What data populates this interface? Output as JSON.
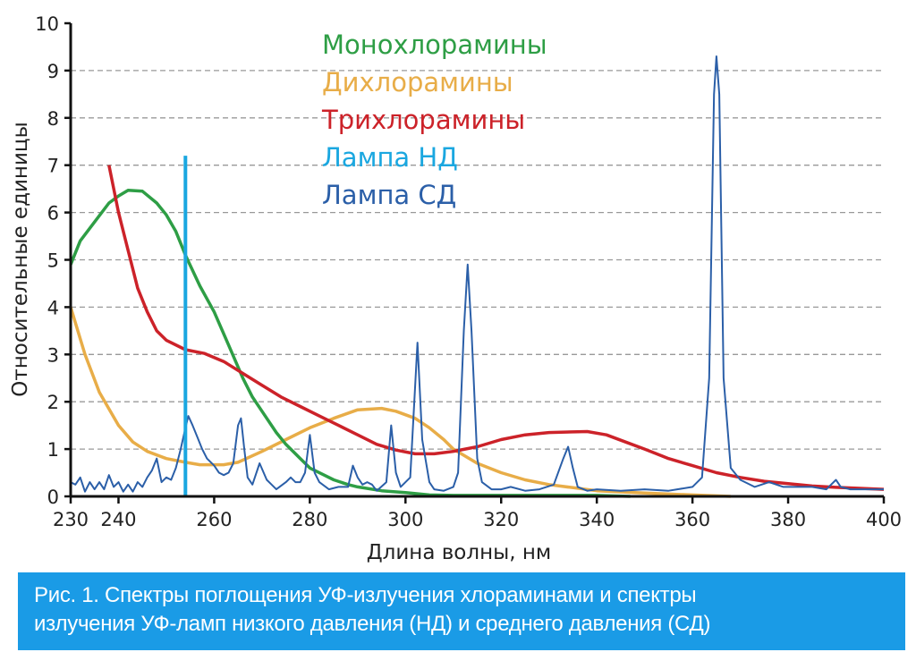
{
  "chart_data": {
    "type": "line",
    "xlabel": "Длина волны, нм",
    "ylabel": "Относительные единицы",
    "xlim": [
      230,
      400
    ],
    "ylim": [
      0,
      10
    ],
    "xticks": [
      230,
      240,
      260,
      280,
      300,
      320,
      340,
      360,
      380,
      400
    ],
    "yticks": [
      0,
      1,
      2,
      3,
      4,
      5,
      6,
      7,
      8,
      9,
      10
    ],
    "grid": "horizontal dashed",
    "legend_placement": "top-center",
    "series": [
      {
        "name": "Монохлорамины",
        "color": "#2e9e45",
        "points": [
          [
            230,
            4.9
          ],
          [
            232,
            5.4
          ],
          [
            235,
            5.8
          ],
          [
            238,
            6.2
          ],
          [
            240,
            6.35
          ],
          [
            242,
            6.47
          ],
          [
            245,
            6.45
          ],
          [
            248,
            6.2
          ],
          [
            250,
            5.95
          ],
          [
            252,
            5.6
          ],
          [
            254,
            5.1
          ],
          [
            257,
            4.45
          ],
          [
            260,
            3.9
          ],
          [
            263,
            3.2
          ],
          [
            266,
            2.5
          ],
          [
            268,
            2.1
          ],
          [
            270,
            1.8
          ],
          [
            273,
            1.35
          ],
          [
            275,
            1.1
          ],
          [
            278,
            0.8
          ],
          [
            280,
            0.6
          ],
          [
            283,
            0.45
          ],
          [
            285,
            0.35
          ],
          [
            288,
            0.25
          ],
          [
            290,
            0.2
          ],
          [
            295,
            0.12
          ],
          [
            300,
            0.08
          ],
          [
            305,
            0.03
          ],
          [
            310,
            0.02
          ],
          [
            340,
            0.02
          ],
          [
            347,
            0
          ]
        ]
      },
      {
        "name": "Дихлорамины",
        "color": "#e8ad48",
        "points": [
          [
            230,
            4.0
          ],
          [
            233,
            3.0
          ],
          [
            236,
            2.2
          ],
          [
            240,
            1.5
          ],
          [
            243,
            1.15
          ],
          [
            246,
            0.95
          ],
          [
            250,
            0.8
          ],
          [
            254,
            0.72
          ],
          [
            257,
            0.67
          ],
          [
            262,
            0.67
          ],
          [
            265,
            0.72
          ],
          [
            270,
            0.95
          ],
          [
            275,
            1.2
          ],
          [
            280,
            1.45
          ],
          [
            285,
            1.65
          ],
          [
            290,
            1.83
          ],
          [
            295,
            1.86
          ],
          [
            298,
            1.8
          ],
          [
            302,
            1.65
          ],
          [
            305,
            1.45
          ],
          [
            308,
            1.2
          ],
          [
            310,
            1.0
          ],
          [
            315,
            0.7
          ],
          [
            320,
            0.5
          ],
          [
            325,
            0.35
          ],
          [
            330,
            0.25
          ],
          [
            340,
            0.12
          ],
          [
            350,
            0.07
          ],
          [
            360,
            0.03
          ],
          [
            368,
            0
          ]
        ]
      },
      {
        "name": "Трихлорамины",
        "color": "#cc2229",
        "points": [
          [
            238,
            7.0
          ],
          [
            240,
            6.0
          ],
          [
            242,
            5.2
          ],
          [
            244,
            4.4
          ],
          [
            246,
            3.9
          ],
          [
            248,
            3.5
          ],
          [
            250,
            3.3
          ],
          [
            254,
            3.1
          ],
          [
            258,
            3.02
          ],
          [
            262,
            2.85
          ],
          [
            266,
            2.6
          ],
          [
            270,
            2.35
          ],
          [
            274,
            2.1
          ],
          [
            278,
            1.9
          ],
          [
            282,
            1.7
          ],
          [
            286,
            1.5
          ],
          [
            290,
            1.3
          ],
          [
            294,
            1.1
          ],
          [
            298,
            0.98
          ],
          [
            302,
            0.9
          ],
          [
            306,
            0.9
          ],
          [
            310,
            0.95
          ],
          [
            315,
            1.05
          ],
          [
            320,
            1.2
          ],
          [
            325,
            1.3
          ],
          [
            330,
            1.35
          ],
          [
            338,
            1.37
          ],
          [
            342,
            1.3
          ],
          [
            346,
            1.15
          ],
          [
            350,
            1.0
          ],
          [
            355,
            0.8
          ],
          [
            360,
            0.65
          ],
          [
            365,
            0.5
          ],
          [
            370,
            0.4
          ],
          [
            375,
            0.32
          ],
          [
            380,
            0.27
          ],
          [
            385,
            0.22
          ],
          [
            390,
            0.19
          ],
          [
            395,
            0.17
          ],
          [
            400,
            0.15
          ]
        ]
      },
      {
        "name": "Лампа НД",
        "color": "#1aa7e0",
        "points": [
          [
            254,
            0
          ],
          [
            254,
            7.2
          ]
        ]
      },
      {
        "name": "Лампа СД",
        "color": "#2b5fa8",
        "points": [
          [
            230,
            0.3
          ],
          [
            231,
            0.25
          ],
          [
            232,
            0.4
          ],
          [
            233,
            0.1
          ],
          [
            234,
            0.3
          ],
          [
            235,
            0.15
          ],
          [
            236,
            0.3
          ],
          [
            237,
            0.15
          ],
          [
            238,
            0.45
          ],
          [
            239,
            0.2
          ],
          [
            240,
            0.3
          ],
          [
            241,
            0.1
          ],
          [
            242,
            0.25
          ],
          [
            243,
            0.1
          ],
          [
            244,
            0.3
          ],
          [
            245,
            0.2
          ],
          [
            246,
            0.4
          ],
          [
            247,
            0.55
          ],
          [
            248,
            0.8
          ],
          [
            249,
            0.3
          ],
          [
            250,
            0.4
          ],
          [
            251,
            0.35
          ],
          [
            252,
            0.6
          ],
          [
            253,
            1.0
          ],
          [
            254,
            1.45
          ],
          [
            254.6,
            1.7
          ],
          [
            255.5,
            1.5
          ],
          [
            256.5,
            1.25
          ],
          [
            257.5,
            1.0
          ],
          [
            258.5,
            0.8
          ],
          [
            260,
            0.65
          ],
          [
            261,
            0.5
          ],
          [
            262,
            0.45
          ],
          [
            263,
            0.5
          ],
          [
            264,
            0.7
          ],
          [
            265,
            1.5
          ],
          [
            265.6,
            1.65
          ],
          [
            266.3,
            1.0
          ],
          [
            267,
            0.4
          ],
          [
            268,
            0.25
          ],
          [
            269.5,
            0.7
          ],
          [
            271,
            0.35
          ],
          [
            272,
            0.25
          ],
          [
            273,
            0.15
          ],
          [
            275,
            0.3
          ],
          [
            276,
            0.4
          ],
          [
            277,
            0.3
          ],
          [
            278,
            0.3
          ],
          [
            279,
            0.5
          ],
          [
            280,
            1.3
          ],
          [
            281,
            0.5
          ],
          [
            282,
            0.3
          ],
          [
            284,
            0.15
          ],
          [
            286,
            0.2
          ],
          [
            288,
            0.2
          ],
          [
            289,
            0.65
          ],
          [
            290,
            0.4
          ],
          [
            291,
            0.25
          ],
          [
            292,
            0.3
          ],
          [
            293,
            0.25
          ],
          [
            294,
            0.12
          ],
          [
            296,
            0.3
          ],
          [
            297,
            1.5
          ],
          [
            298,
            0.5
          ],
          [
            299,
            0.2
          ],
          [
            301,
            0.4
          ],
          [
            302.5,
            3.25
          ],
          [
            303.5,
            1.2
          ],
          [
            305,
            0.3
          ],
          [
            306,
            0.15
          ],
          [
            308,
            0.12
          ],
          [
            310,
            0.2
          ],
          [
            311,
            0.5
          ],
          [
            312.2,
            3.5
          ],
          [
            313,
            4.9
          ],
          [
            313.8,
            3.5
          ],
          [
            315,
            0.8
          ],
          [
            316,
            0.3
          ],
          [
            318,
            0.15
          ],
          [
            320,
            0.15
          ],
          [
            322,
            0.2
          ],
          [
            325,
            0.12
          ],
          [
            328,
            0.15
          ],
          [
            331,
            0.25
          ],
          [
            333,
            0.8
          ],
          [
            334,
            1.05
          ],
          [
            335,
            0.6
          ],
          [
            336,
            0.2
          ],
          [
            338,
            0.12
          ],
          [
            340,
            0.15
          ],
          [
            345,
            0.12
          ],
          [
            350,
            0.15
          ],
          [
            355,
            0.12
          ],
          [
            360,
            0.2
          ],
          [
            362,
            0.4
          ],
          [
            363.5,
            2.5
          ],
          [
            364.5,
            8.5
          ],
          [
            365,
            9.3
          ],
          [
            365.6,
            8.5
          ],
          [
            366.5,
            2.5
          ],
          [
            368,
            0.6
          ],
          [
            370,
            0.35
          ],
          [
            373,
            0.2
          ],
          [
            376,
            0.3
          ],
          [
            379,
            0.2
          ],
          [
            382,
            0.2
          ],
          [
            385,
            0.2
          ],
          [
            388,
            0.15
          ],
          [
            390,
            0.35
          ],
          [
            391,
            0.2
          ],
          [
            393,
            0.15
          ],
          [
            396,
            0.15
          ],
          [
            400,
            0.15
          ]
        ]
      }
    ]
  },
  "caption": {
    "line1": "Рис. 1. Спектры поглощения УФ-излучения хлораминами и спектры",
    "line2": "излучения УФ-ламп низкого давления (НД) и среднего давления (СД)"
  }
}
